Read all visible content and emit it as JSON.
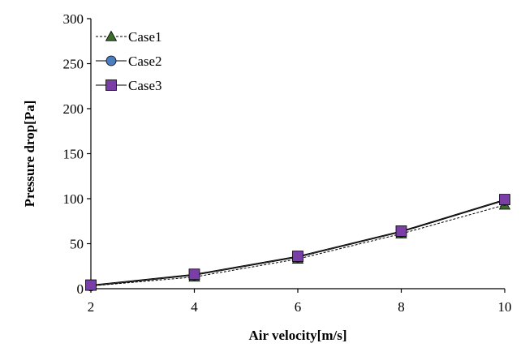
{
  "chart_data": {
    "type": "line",
    "xlabel": "Air velocity[m/s]",
    "ylabel": "Pressure drop[Pa]",
    "xlim": [
      2,
      10
    ],
    "ylim": [
      0,
      300
    ],
    "xticks": [
      2,
      4,
      6,
      8,
      10
    ],
    "yticks": [
      0,
      50,
      100,
      150,
      200,
      250,
      300
    ],
    "grid": false,
    "legend_position": "top-left",
    "x": [
      2,
      4,
      6,
      8,
      10
    ],
    "series": [
      {
        "name": "Case1",
        "values": [
          3,
          13,
          33,
          61,
          93
        ],
        "marker": "triangle",
        "line": "dashed",
        "color": "#3b6e2a"
      },
      {
        "name": "Case2",
        "values": [
          3,
          15,
          35,
          63,
          98
        ],
        "marker": "circle",
        "line": "solid",
        "color": "#4a7ec0"
      },
      {
        "name": "Case3",
        "values": [
          4,
          16,
          36,
          64,
          99
        ],
        "marker": "square",
        "line": "solid",
        "color": "#7a3fa6"
      }
    ]
  }
}
